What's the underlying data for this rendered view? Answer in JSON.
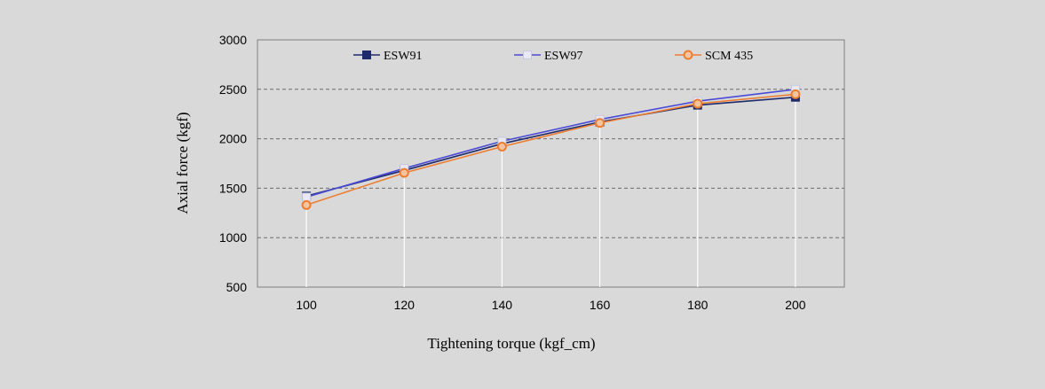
{
  "chart_data": {
    "type": "line",
    "title": "",
    "xlabel": "Tightening torque (kgf_cm)",
    "ylabel": "Axial force (kgf)",
    "x": [
      100,
      120,
      140,
      160,
      180,
      200
    ],
    "x_tick_labels": [
      "100",
      "120",
      "140",
      "160",
      "180",
      "200"
    ],
    "xlim": [
      90,
      210
    ],
    "ylim": [
      500,
      3000
    ],
    "y_ticks": [
      500,
      1000,
      1500,
      2000,
      2500,
      3000
    ],
    "y_tick_labels": [
      "500",
      "1000",
      "1500",
      "2000",
      "2500",
      "3000"
    ],
    "grid": "horizontal dashed",
    "legend_position": "top",
    "series": [
      {
        "name": "ESW91",
        "values": [
          1420,
          1680,
          1950,
          2170,
          2340,
          2420
        ],
        "color": "#1f2a6b",
        "marker": "square"
      },
      {
        "name": "ESW97",
        "values": [
          1410,
          1700,
          1975,
          2195,
          2380,
          2500
        ],
        "color": "#4a4ad6",
        "marker": "square-hollow"
      },
      {
        "name": "SCM 435",
        "values": [
          1330,
          1655,
          1920,
          2160,
          2355,
          2450
        ],
        "color": "#ed7d31",
        "marker": "circle-hollow"
      }
    ]
  }
}
